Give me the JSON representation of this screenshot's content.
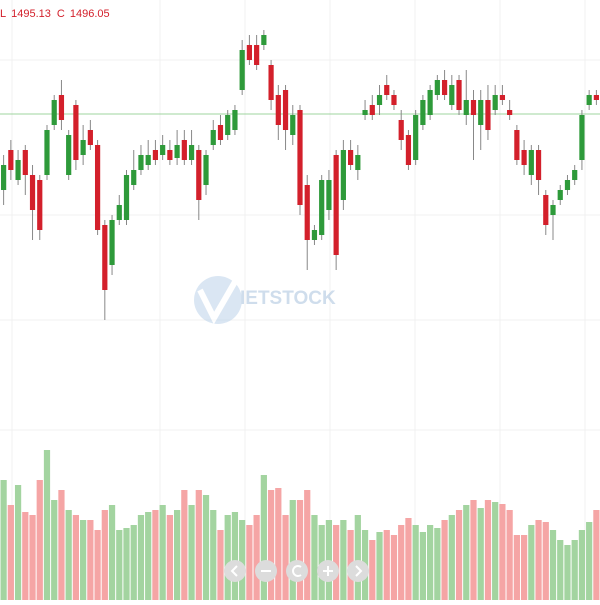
{
  "chart_data": {
    "type": "candlestick",
    "header": [
      {
        "label": "L",
        "value": 1495.13
      },
      {
        "label": "C",
        "value": 1496.05
      }
    ],
    "watermark": "IETSTOCK",
    "ylim": [
      1190,
      1610
    ],
    "volume_ylim": [
      0,
      160
    ],
    "up_color": "#2e9a3a",
    "down_color": "#d3202b",
    "up_volume_color": "#a3d4a0",
    "down_volume_color": "#f5a5a5",
    "line_color": "#9fd49f",
    "header_color": "#d3202b",
    "open": [
      1420,
      1460,
      1430,
      1460,
      1435,
      1430,
      1435,
      1485,
      1515,
      1435,
      1505,
      1455,
      1480,
      1465,
      1385,
      1345,
      1390,
      1390,
      1425,
      1440,
      1445,
      1460,
      1455,
      1460,
      1452,
      1470,
      1450,
      1460,
      1425,
      1465,
      1485,
      1475,
      1480,
      1520,
      1565,
      1565,
      1565,
      1545,
      1515,
      1520,
      1475,
      1500,
      1425,
      1370,
      1375,
      1400,
      1455,
      1410,
      1460,
      1440,
      1495,
      1505,
      1505,
      1525,
      1515,
      1490,
      1475,
      1450,
      1485,
      1495,
      1515,
      1530,
      1505,
      1530,
      1495,
      1510,
      1485,
      1510,
      1500,
      1515,
      1500,
      1480,
      1460,
      1435,
      1460,
      1415,
      1395,
      1410,
      1420,
      1430,
      1450,
      1505,
      1515
    ],
    "high": [
      1455,
      1470,
      1460,
      1465,
      1445,
      1435,
      1485,
      1515,
      1530,
      1480,
      1510,
      1485,
      1490,
      1470,
      1390,
      1395,
      1415,
      1440,
      1460,
      1465,
      1470,
      1470,
      1475,
      1470,
      1480,
      1480,
      1480,
      1465,
      1460,
      1490,
      1495,
      1500,
      1505,
      1570,
      1575,
      1575,
      1580,
      1550,
      1525,
      1525,
      1505,
      1505,
      1435,
      1385,
      1435,
      1440,
      1460,
      1470,
      1470,
      1465,
      1510,
      1515,
      1525,
      1535,
      1520,
      1500,
      1480,
      1500,
      1515,
      1525,
      1535,
      1540,
      1535,
      1535,
      1540,
      1520,
      1520,
      1525,
      1525,
      1525,
      1510,
      1485,
      1470,
      1465,
      1465,
      1420,
      1410,
      1425,
      1435,
      1445,
      1500,
      1520,
      1520
    ],
    "low": [
      1405,
      1430,
      1425,
      1415,
      1370,
      1370,
      1430,
      1480,
      1480,
      1430,
      1440,
      1445,
      1460,
      1375,
      1290,
      1335,
      1385,
      1385,
      1420,
      1435,
      1440,
      1445,
      1450,
      1445,
      1445,
      1445,
      1445,
      1390,
      1415,
      1460,
      1465,
      1470,
      1475,
      1515,
      1545,
      1540,
      1560,
      1500,
      1470,
      1460,
      1465,
      1395,
      1340,
      1365,
      1370,
      1390,
      1340,
      1400,
      1440,
      1430,
      1490,
      1490,
      1495,
      1510,
      1500,
      1460,
      1440,
      1445,
      1480,
      1490,
      1510,
      1510,
      1500,
      1495,
      1485,
      1450,
      1460,
      1470,
      1495,
      1505,
      1490,
      1445,
      1435,
      1425,
      1415,
      1375,
      1370,
      1405,
      1415,
      1425,
      1440,
      1500,
      1505
    ],
    "close": [
      1445,
      1440,
      1450,
      1435,
      1400,
      1380,
      1480,
      1510,
      1490,
      1475,
      1450,
      1470,
      1465,
      1380,
      1320,
      1390,
      1405,
      1435,
      1440,
      1455,
      1455,
      1450,
      1465,
      1450,
      1465,
      1450,
      1465,
      1410,
      1455,
      1480,
      1470,
      1495,
      1500,
      1560,
      1550,
      1545,
      1575,
      1510,
      1485,
      1480,
      1495,
      1405,
      1370,
      1380,
      1430,
      1430,
      1355,
      1460,
      1445,
      1455,
      1500,
      1495,
      1515,
      1515,
      1505,
      1470,
      1445,
      1495,
      1510,
      1520,
      1530,
      1515,
      1525,
      1500,
      1510,
      1495,
      1510,
      1480,
      1515,
      1510,
      1495,
      1450,
      1445,
      1460,
      1430,
      1385,
      1405,
      1420,
      1430,
      1440,
      1495,
      1515,
      1510
    ],
    "volume": [
      120,
      95,
      115,
      88,
      85,
      120,
      150,
      100,
      110,
      90,
      85,
      80,
      80,
      70,
      90,
      95,
      70,
      72,
      75,
      85,
      88,
      90,
      95,
      85,
      90,
      110,
      95,
      110,
      105,
      90,
      70,
      85,
      88,
      80,
      75,
      85,
      125,
      110,
      112,
      85,
      100,
      100,
      110,
      85,
      75,
      80,
      75,
      80,
      70,
      85,
      70,
      60,
      68,
      70,
      65,
      75,
      82,
      75,
      68,
      75,
      72,
      80,
      85,
      90,
      95,
      100,
      92,
      100,
      98,
      96,
      90,
      65,
      65,
      75,
      80,
      78,
      70,
      60,
      55,
      60,
      70,
      78,
      90
    ]
  }
}
